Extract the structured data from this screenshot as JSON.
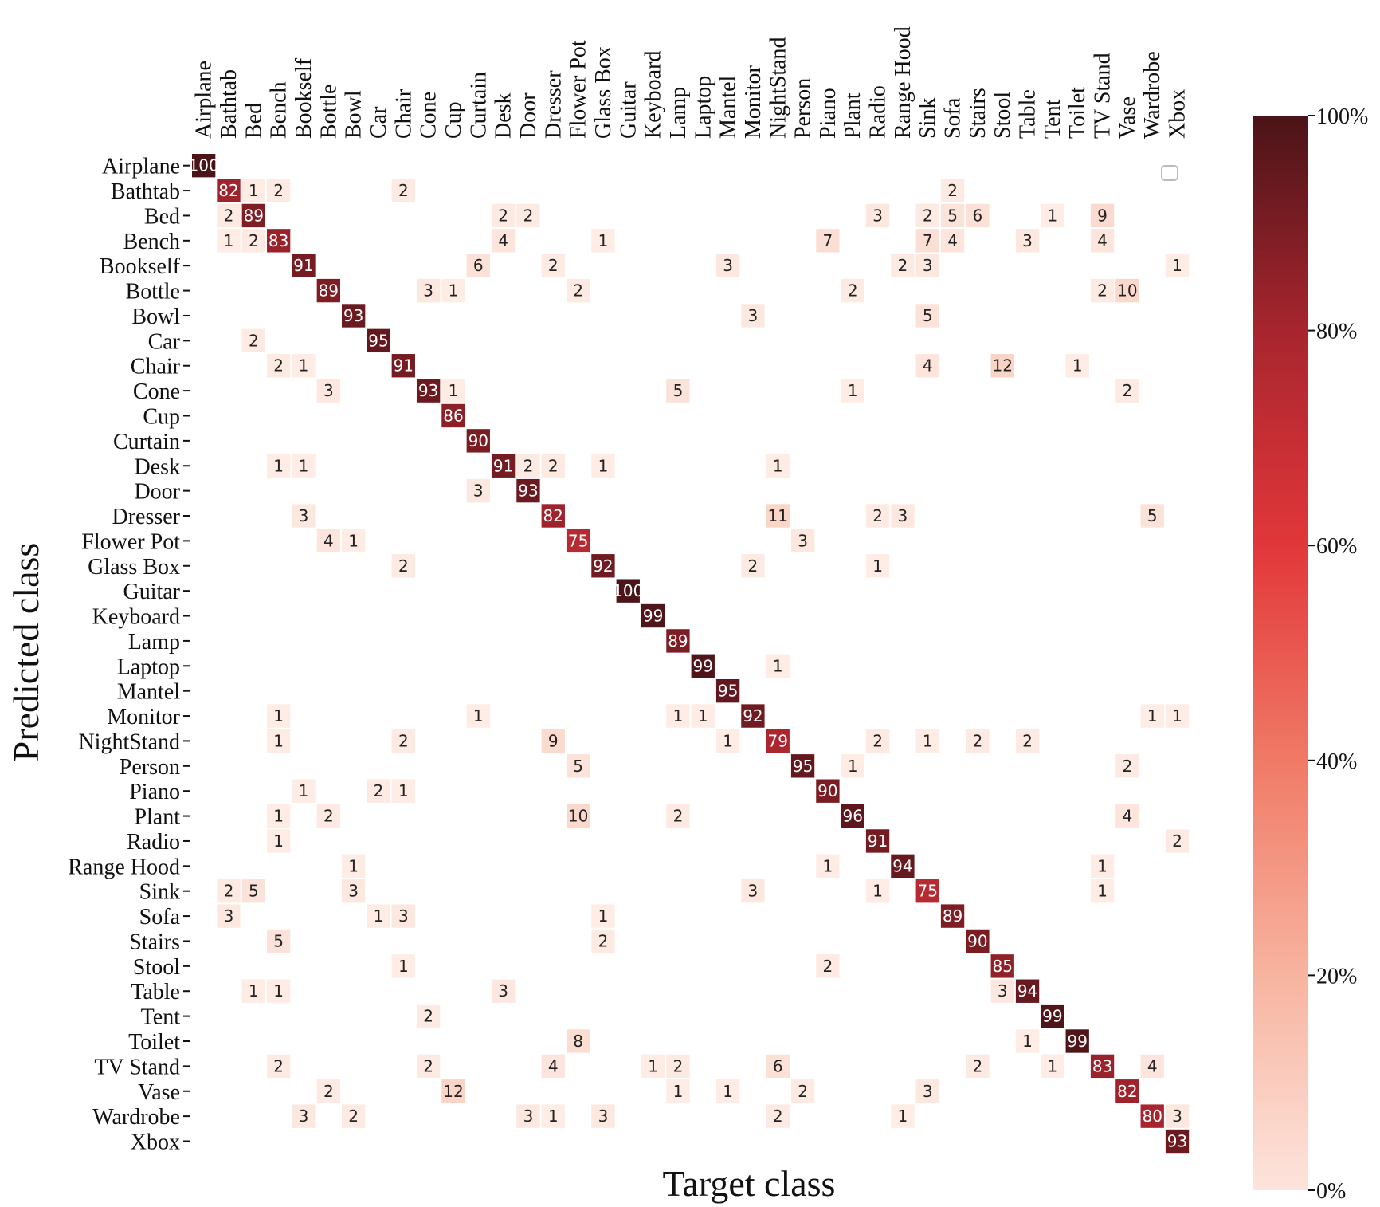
{
  "chart_data": {
    "type": "heatmap",
    "xlabel": "Target class",
    "ylabel": "Predicted class",
    "classes": [
      "Airplane",
      "Bathtab",
      "Bed",
      "Bench",
      "Bookself",
      "Bottle",
      "Bowl",
      "Car",
      "Chair",
      "Cone",
      "Cup",
      "Curtain",
      "Desk",
      "Door",
      "Dresser",
      "Flower Pot",
      "Glass Box",
      "Guitar",
      "Keyboard",
      "Lamp",
      "Laptop",
      "Mantel",
      "Monitor",
      "NightStand",
      "Person",
      "Piano",
      "Plant",
      "Radio",
      "Range Hood",
      "Sink",
      "Sofa",
      "Stairs",
      "Stool",
      "Table",
      "Tent",
      "Toilet",
      "TV Stand",
      "Vase",
      "Wardrobe",
      "Xbox"
    ],
    "row_labels": [
      "Airplane",
      "Bathtab",
      "Bed",
      "Bench",
      "Bookself",
      "Bottle",
      "Bowl",
      "Car",
      "Chair",
      "Cone",
      "Cup",
      "Curtain",
      "Desk",
      "Door",
      "Dresser",
      "Flower Pot",
      "Glass Box",
      "Guitar",
      "Keyboard",
      "Lamp",
      "Laptop",
      "Mantel",
      "Monitor",
      "NightStand",
      "Person",
      "Piano",
      "Plant",
      "Radio",
      "Range Hood",
      "Sink",
      "Sofa",
      "Stairs",
      "Stool",
      "Table",
      "Tent",
      "Toilet",
      "TV Stand",
      "Vase",
      "Wardrobe",
      "Xbox"
    ],
    "col_labels": [
      "Airplane",
      "Bathtab",
      "Bed",
      "Bench",
      "Bookself",
      "Bottle",
      "Bowl",
      "Car",
      "Chair",
      "Cone",
      "Cup",
      "Curtain",
      "Desk",
      "Door",
      "Dresser",
      "Flower Pot",
      "Glass Box",
      "Guitar",
      "Keyboard",
      "Lamp",
      "Laptop",
      "Mantel",
      "Monitor",
      "NightStand",
      "Person",
      "Piano",
      "Plant",
      "Radio",
      "Range Hood",
      "Sink",
      "Sofa",
      "Stairs",
      "Stool",
      "Table",
      "Tent",
      "Toilet",
      "TV Stand",
      "Vase",
      "Wardrobe",
      "Xbox"
    ],
    "cells": [
      [
        0,
        0,
        100
      ],
      [
        1,
        1,
        82
      ],
      [
        1,
        2,
        1
      ],
      [
        1,
        3,
        2
      ],
      [
        1,
        8,
        2
      ],
      [
        1,
        30,
        2
      ],
      [
        2,
        1,
        2
      ],
      [
        2,
        2,
        89
      ],
      [
        2,
        12,
        2
      ],
      [
        2,
        13,
        2
      ],
      [
        2,
        27,
        3
      ],
      [
        2,
        29,
        2
      ],
      [
        2,
        30,
        5
      ],
      [
        2,
        31,
        6
      ],
      [
        2,
        34,
        1
      ],
      [
        2,
        36,
        9
      ],
      [
        3,
        1,
        1
      ],
      [
        3,
        2,
        2
      ],
      [
        3,
        3,
        83
      ],
      [
        3,
        12,
        4
      ],
      [
        3,
        16,
        1
      ],
      [
        3,
        25,
        7
      ],
      [
        3,
        29,
        7
      ],
      [
        3,
        30,
        4
      ],
      [
        3,
        33,
        3
      ],
      [
        3,
        36,
        4
      ],
      [
        4,
        4,
        91
      ],
      [
        4,
        11,
        6
      ],
      [
        4,
        14,
        2
      ],
      [
        4,
        21,
        3
      ],
      [
        4,
        28,
        2
      ],
      [
        4,
        29,
        3
      ],
      [
        4,
        39,
        1
      ],
      [
        5,
        5,
        89
      ],
      [
        5,
        9,
        3
      ],
      [
        5,
        10,
        1
      ],
      [
        5,
        15,
        2
      ],
      [
        5,
        26,
        2
      ],
      [
        5,
        36,
        2
      ],
      [
        5,
        37,
        10
      ],
      [
        6,
        6,
        93
      ],
      [
        6,
        22,
        3
      ],
      [
        6,
        29,
        5
      ],
      [
        7,
        2,
        2
      ],
      [
        7,
        7,
        95
      ],
      [
        8,
        3,
        2
      ],
      [
        8,
        4,
        1
      ],
      [
        8,
        8,
        91
      ],
      [
        8,
        29,
        4
      ],
      [
        8,
        32,
        12
      ],
      [
        8,
        35,
        1
      ],
      [
        9,
        5,
        3
      ],
      [
        9,
        9,
        93
      ],
      [
        9,
        10,
        1
      ],
      [
        9,
        19,
        5
      ],
      [
        9,
        26,
        1
      ],
      [
        9,
        37,
        2
      ],
      [
        10,
        10,
        86
      ],
      [
        11,
        11,
        90
      ],
      [
        12,
        3,
        1
      ],
      [
        12,
        4,
        1
      ],
      [
        12,
        12,
        91
      ],
      [
        12,
        13,
        2
      ],
      [
        12,
        14,
        2
      ],
      [
        12,
        16,
        1
      ],
      [
        12,
        23,
        1
      ],
      [
        13,
        11,
        3
      ],
      [
        13,
        13,
        93
      ],
      [
        14,
        4,
        3
      ],
      [
        14,
        14,
        82
      ],
      [
        14,
        23,
        11
      ],
      [
        14,
        27,
        2
      ],
      [
        14,
        28,
        3
      ],
      [
        14,
        38,
        5
      ],
      [
        15,
        5,
        4
      ],
      [
        15,
        6,
        1
      ],
      [
        15,
        15,
        75
      ],
      [
        15,
        24,
        3
      ],
      [
        16,
        8,
        2
      ],
      [
        16,
        16,
        92
      ],
      [
        16,
        22,
        2
      ],
      [
        16,
        27,
        1
      ],
      [
        17,
        17,
        100
      ],
      [
        18,
        18,
        99
      ],
      [
        19,
        19,
        89
      ],
      [
        20,
        20,
        99
      ],
      [
        20,
        23,
        1
      ],
      [
        21,
        21,
        95
      ],
      [
        22,
        3,
        1
      ],
      [
        22,
        11,
        1
      ],
      [
        22,
        19,
        1
      ],
      [
        22,
        20,
        1
      ],
      [
        22,
        22,
        92
      ],
      [
        22,
        38,
        1
      ],
      [
        22,
        39,
        1
      ],
      [
        23,
        3,
        1
      ],
      [
        23,
        8,
        2
      ],
      [
        23,
        14,
        9
      ],
      [
        23,
        21,
        1
      ],
      [
        23,
        23,
        79
      ],
      [
        23,
        27,
        2
      ],
      [
        23,
        29,
        1
      ],
      [
        23,
        31,
        2
      ],
      [
        23,
        33,
        2
      ],
      [
        24,
        15,
        5
      ],
      [
        24,
        24,
        95
      ],
      [
        24,
        26,
        1
      ],
      [
        24,
        37,
        2
      ],
      [
        25,
        4,
        1
      ],
      [
        25,
        7,
        2
      ],
      [
        25,
        8,
        1
      ],
      [
        25,
        25,
        90
      ],
      [
        26,
        3,
        1
      ],
      [
        26,
        5,
        2
      ],
      [
        26,
        15,
        10
      ],
      [
        26,
        19,
        2
      ],
      [
        26,
        26,
        96
      ],
      [
        26,
        37,
        4
      ],
      [
        27,
        3,
        1
      ],
      [
        27,
        27,
        91
      ],
      [
        27,
        39,
        2
      ],
      [
        28,
        6,
        1
      ],
      [
        28,
        25,
        1
      ],
      [
        28,
        28,
        94
      ],
      [
        28,
        36,
        1
      ],
      [
        29,
        1,
        2
      ],
      [
        29,
        2,
        5
      ],
      [
        29,
        6,
        3
      ],
      [
        29,
        22,
        3
      ],
      [
        29,
        27,
        1
      ],
      [
        29,
        29,
        75
      ],
      [
        29,
        36,
        1
      ],
      [
        30,
        1,
        3
      ],
      [
        30,
        7,
        1
      ],
      [
        30,
        8,
        3
      ],
      [
        30,
        16,
        1
      ],
      [
        30,
        30,
        89
      ],
      [
        31,
        3,
        5
      ],
      [
        31,
        16,
        2
      ],
      [
        31,
        31,
        90
      ],
      [
        32,
        8,
        1
      ],
      [
        32,
        25,
        2
      ],
      [
        32,
        32,
        85
      ],
      [
        33,
        2,
        1
      ],
      [
        33,
        3,
        1
      ],
      [
        33,
        12,
        3
      ],
      [
        33,
        32,
        3
      ],
      [
        33,
        33,
        94
      ],
      [
        34,
        9,
        2
      ],
      [
        34,
        34,
        99
      ],
      [
        35,
        15,
        8
      ],
      [
        35,
        33,
        1
      ],
      [
        35,
        35,
        99
      ],
      [
        36,
        3,
        2
      ],
      [
        36,
        9,
        2
      ],
      [
        36,
        14,
        4
      ],
      [
        36,
        18,
        1
      ],
      [
        36,
        19,
        2
      ],
      [
        36,
        23,
        6
      ],
      [
        36,
        31,
        2
      ],
      [
        36,
        34,
        1
      ],
      [
        36,
        36,
        83
      ],
      [
        36,
        38,
        4
      ],
      [
        37,
        5,
        2
      ],
      [
        37,
        10,
        12
      ],
      [
        37,
        19,
        1
      ],
      [
        37,
        21,
        1
      ],
      [
        37,
        24,
        2
      ],
      [
        37,
        29,
        3
      ],
      [
        37,
        37,
        82
      ],
      [
        38,
        4,
        3
      ],
      [
        38,
        6,
        2
      ],
      [
        38,
        13,
        3
      ],
      [
        38,
        14,
        1
      ],
      [
        38,
        16,
        3
      ],
      [
        38,
        23,
        2
      ],
      [
        38,
        28,
        1
      ],
      [
        38,
        38,
        80
      ],
      [
        38,
        39,
        3
      ],
      [
        39,
        39,
        93
      ]
    ],
    "value_range": [
      0,
      100
    ],
    "colorbar": {
      "ticks": [
        100,
        80,
        60,
        40,
        20,
        0
      ],
      "tick_labels": [
        "100%",
        "80%",
        "60%",
        "40%",
        "20%",
        "0%"
      ],
      "colormap": "Reds",
      "colors": [
        "#fee5d9",
        "#fcbba1",
        "#fc9272",
        "#fb6a4a",
        "#ef3b2c",
        "#cb181d",
        "#a50f15",
        "#67000d",
        "#4a1418"
      ]
    },
    "grid": false,
    "legend": "top-right (empty)"
  }
}
